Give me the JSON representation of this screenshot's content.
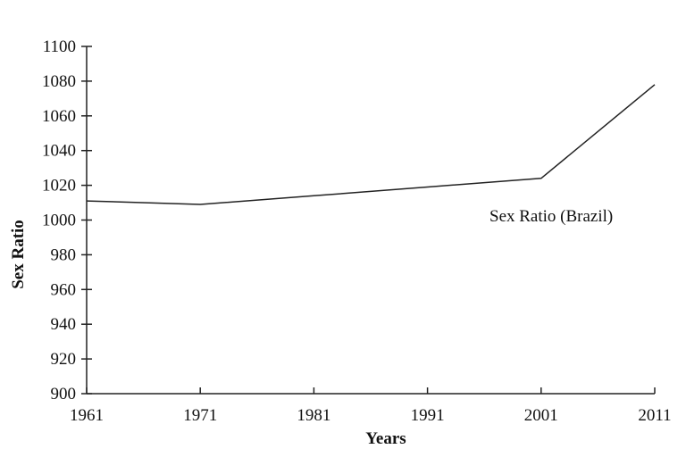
{
  "chart_data": {
    "type": "line",
    "title": "",
    "xlabel": "Years",
    "ylabel": "Sex Ratio",
    "x": [
      1961,
      1971,
      1981,
      1991,
      2001,
      2011
    ],
    "xticks": [
      "1961",
      "1971",
      "1981",
      "1991",
      "2001",
      "2011"
    ],
    "yticks": [
      "900",
      "920",
      "940",
      "960",
      "980",
      "1000",
      "1020",
      "1040",
      "1060",
      "1080",
      "1100"
    ],
    "xlim": [
      1961,
      2011
    ],
    "ylim": [
      900,
      1100
    ],
    "grid": false,
    "series": [
      {
        "name": "Sex Ratio (Brazil)",
        "values": [
          1011,
          1009,
          1014,
          1019,
          1024,
          1078
        ],
        "color": "#222222"
      }
    ],
    "annotation": "Sex Ratio (Brazil)"
  }
}
